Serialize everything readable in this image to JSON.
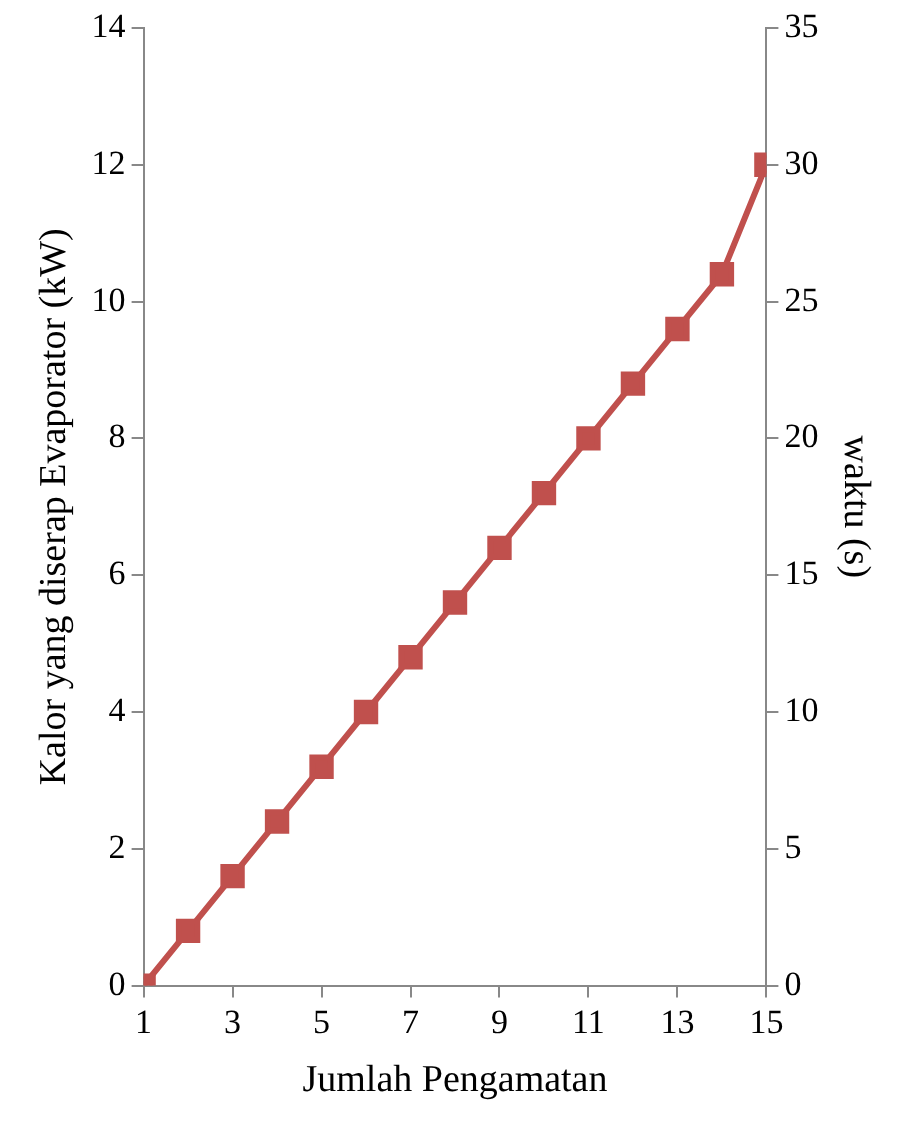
{
  "chart_data": {
    "type": "line",
    "xlabel": "Jumlah Pengamatan",
    "ylabel": "Kalor yang diserap Evaporator (kW)",
    "y2label": "waktu (s)",
    "x": [
      1,
      2,
      3,
      4,
      5,
      6,
      7,
      8,
      9,
      10,
      11,
      12,
      13,
      14,
      15
    ],
    "xlim": [
      1,
      15
    ],
    "xticks": [
      1,
      3,
      5,
      7,
      9,
      11,
      13,
      15
    ],
    "ylim": [
      0,
      14
    ],
    "yticks": [
      0,
      2,
      4,
      6,
      8,
      10,
      12,
      14
    ],
    "y2lim": [
      0,
      35
    ],
    "y2ticks": [
      0,
      5,
      10,
      15,
      20,
      25,
      30,
      35
    ],
    "series": [
      {
        "color": "#c0504d",
        "axis": "y2",
        "values": [
          0,
          2,
          4,
          6,
          8,
          10,
          12,
          14,
          16,
          18,
          20,
          22,
          24,
          26,
          30
        ]
      }
    ],
    "marker": "square",
    "line_style": "solid",
    "grid": false,
    "legend": false
  }
}
